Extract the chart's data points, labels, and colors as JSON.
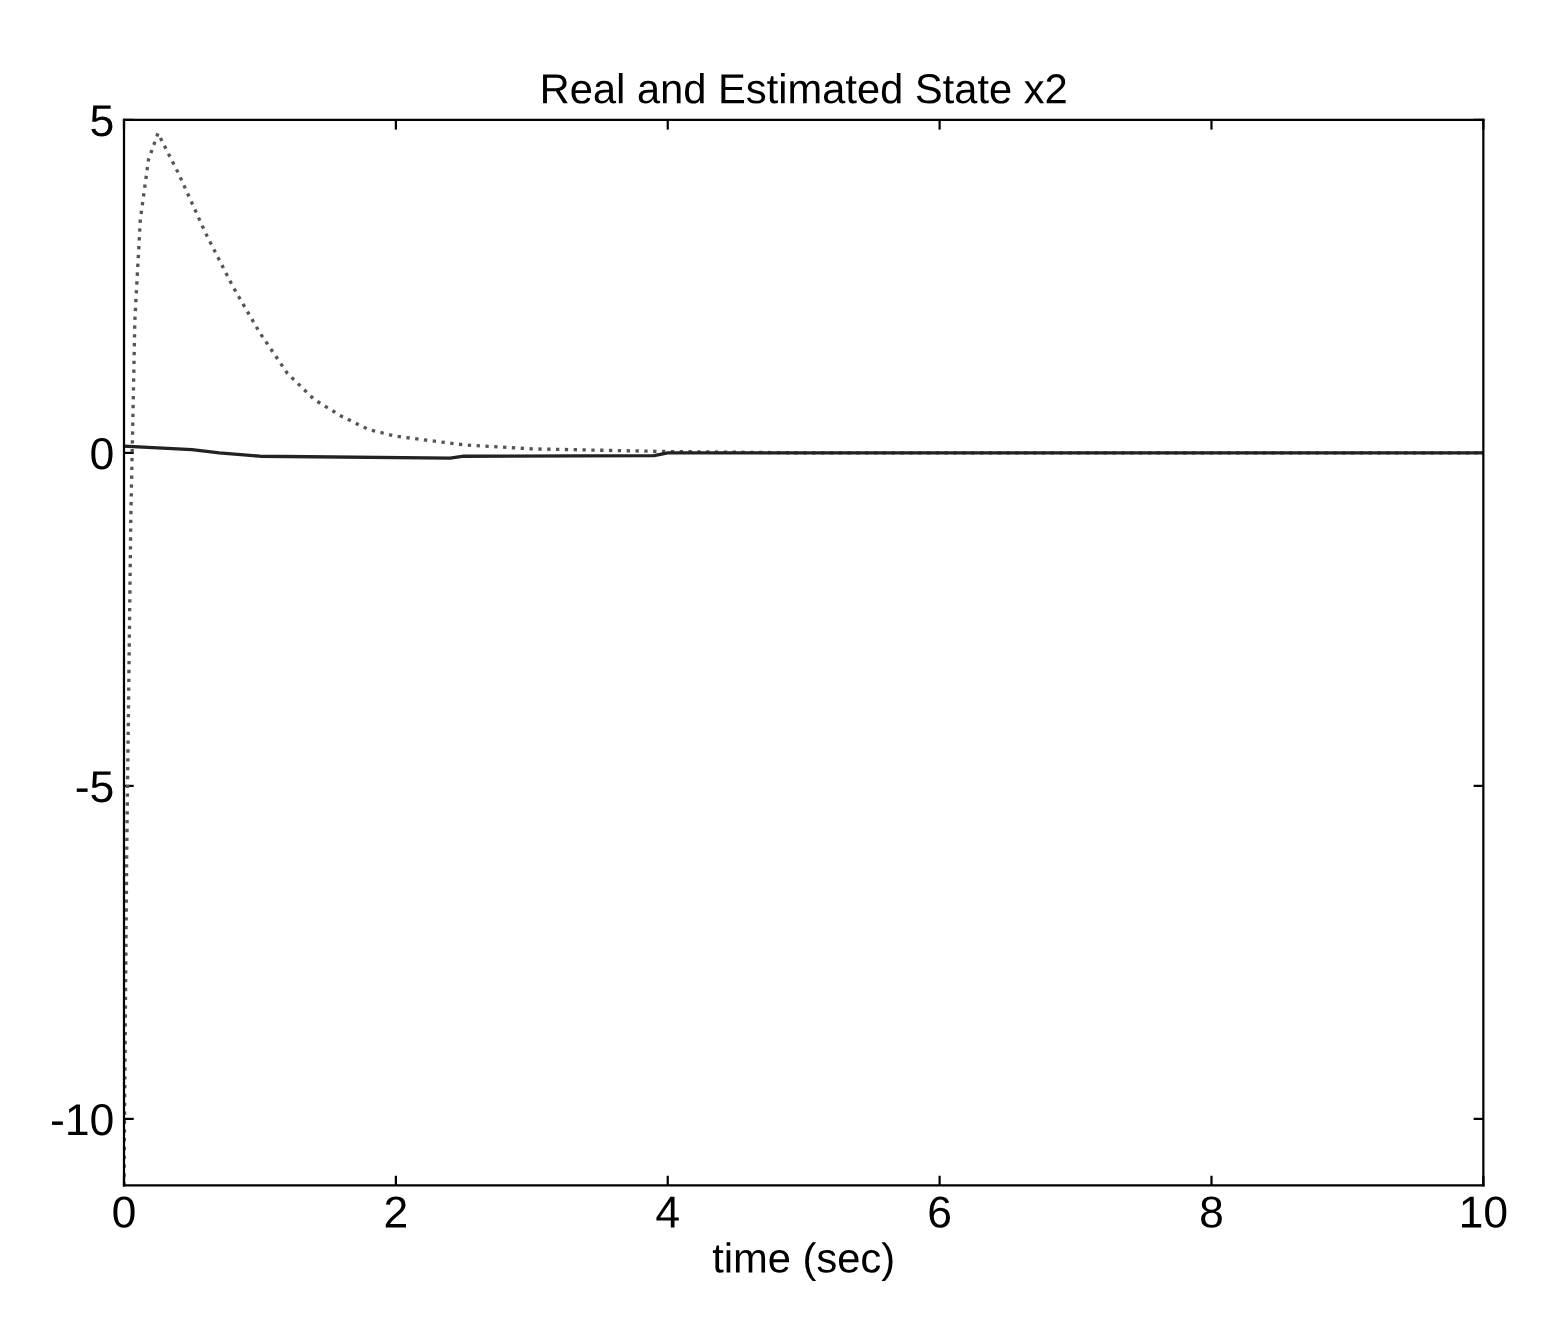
{
  "chart_data": {
    "type": "line",
    "title": "Real and Estimated State x2",
    "xlabel": "time (sec)",
    "xlim": [
      0,
      10
    ],
    "ylim": [
      -11,
      5
    ],
    "xticks": [
      0,
      2,
      4,
      6,
      8,
      10
    ],
    "yticks": [
      -10,
      -5,
      0,
      5
    ],
    "grid": false,
    "legend": false,
    "series": [
      {
        "color": "#555555",
        "line_style": "dotted",
        "x": [
          0,
          0.02,
          0.05,
          0.08,
          0.12,
          0.18,
          0.25,
          0.4,
          0.6,
          0.8,
          1.0,
          1.2,
          1.4,
          1.6,
          1.8,
          2.0,
          2.5,
          3,
          4,
          5,
          10
        ],
        "values": [
          -11,
          -6,
          -1,
          2,
          3.5,
          4.4,
          4.8,
          4.2,
          3.3,
          2.5,
          1.8,
          1.2,
          0.8,
          0.55,
          0.35,
          0.25,
          0.12,
          0.06,
          0.02,
          0,
          0
        ]
      },
      {
        "color": "#222222",
        "line_style": "solid",
        "x": [
          0,
          0.5,
          0.7,
          1,
          2.4,
          2.5,
          3.9,
          4,
          10
        ],
        "values": [
          0.1,
          0.05,
          0,
          -0.05,
          -0.08,
          -0.05,
          -0.04,
          0,
          0
        ]
      }
    ]
  }
}
